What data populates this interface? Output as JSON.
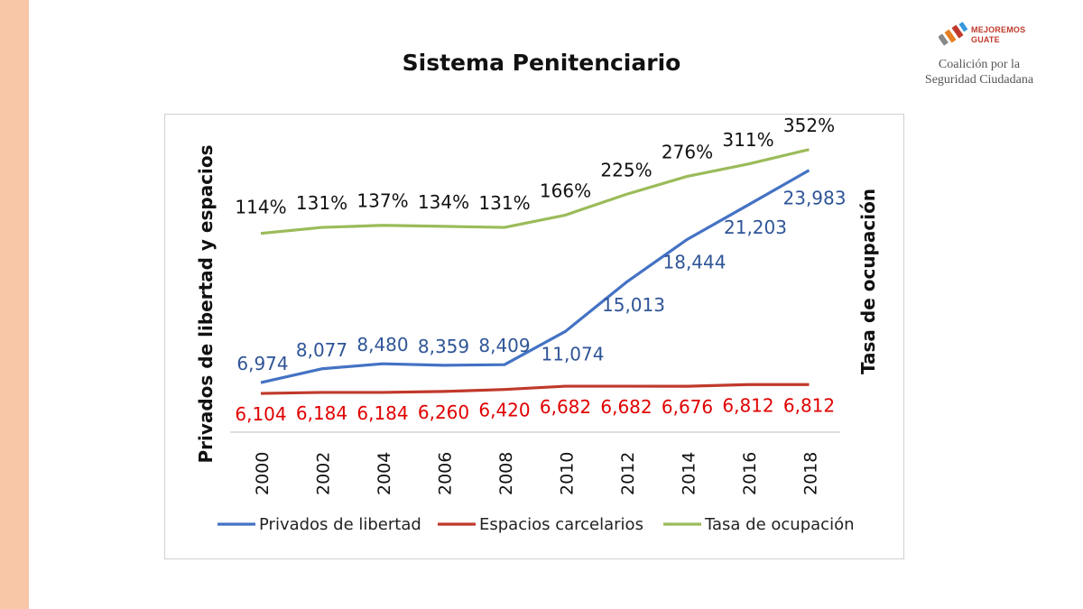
{
  "page": {
    "title": "Sistema Penitenciario",
    "logo": {
      "word1": "MEJOREMOS",
      "word2": "GUATE",
      "tag1": "Coalición por la",
      "tag2": "Seguridad Ciudadana"
    }
  },
  "colors": {
    "side_strip": "#f7c7a8",
    "privados": "#4472c4",
    "espacios": "#c0392b",
    "tasa": "#9bbb59",
    "privados_label": "#2f5597",
    "espacios_label": "#e00000",
    "tasa_label": "#111111"
  },
  "chart_data": {
    "type": "line",
    "categories": [
      "2000",
      "2002",
      "2004",
      "2006",
      "2008",
      "2010",
      "2012",
      "2014",
      "2016",
      "2018"
    ],
    "series": [
      {
        "name": "Privados de libertad",
        "axis": "left",
        "values": [
          6974,
          8077,
          8480,
          8359,
          8409,
          11074,
          15013,
          18444,
          21203,
          23983
        ],
        "labels": [
          "6,974",
          "8,077",
          "8,480",
          "8,359",
          "8,409",
          "11,074",
          "15,013",
          "18,444",
          "21,203",
          "23,983"
        ]
      },
      {
        "name": "Espacios carcelarios",
        "axis": "left",
        "values": [
          6104,
          6184,
          6184,
          6260,
          6420,
          6682,
          6682,
          6676,
          6812,
          6812
        ],
        "labels": [
          "6,104",
          "6,184",
          "6,184",
          "6,260",
          "6,420",
          "6,682",
          "6,682",
          "6,676",
          "6,812",
          "6,812"
        ]
      },
      {
        "name": "Tasa de ocupación",
        "axis": "right",
        "values": [
          114,
          131,
          137,
          134,
          131,
          166,
          225,
          276,
          311,
          352
        ],
        "labels": [
          "114%",
          "131%",
          "137%",
          "134%",
          "131%",
          "166%",
          "225%",
          "276%",
          "311%",
          "352%"
        ]
      }
    ],
    "ylabel": "Privados de libertad y espacios",
    "y2label": "Tasa de ocupación",
    "ylim": [
      3000,
      27000
    ],
    "y2lim": [
      -450,
      400
    ],
    "grid": false,
    "legend": "bottom"
  }
}
